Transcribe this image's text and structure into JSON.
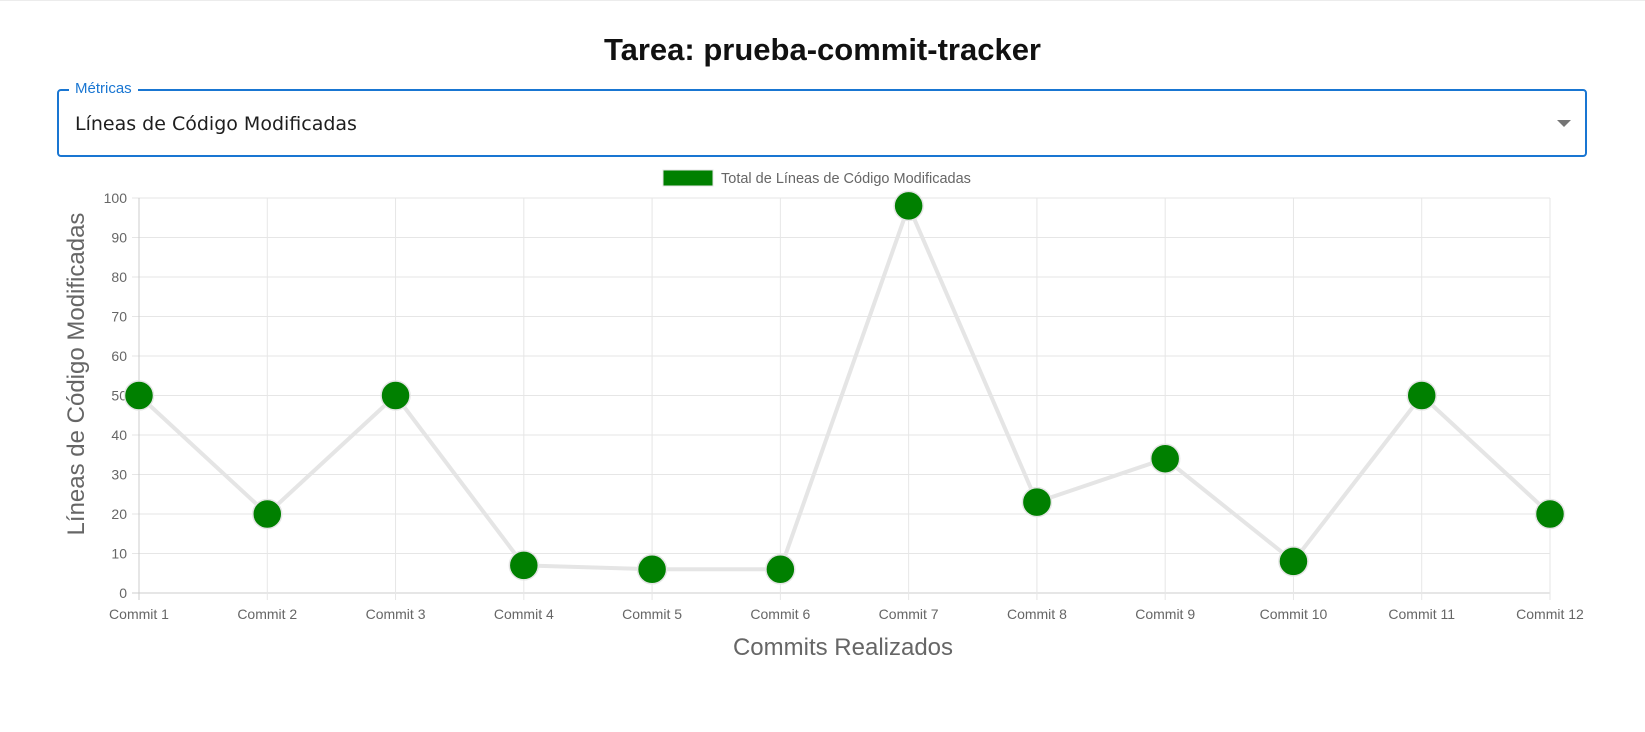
{
  "page": {
    "title": "Tarea: prueba-commit-tracker"
  },
  "metric_select": {
    "label": "Métricas",
    "value": "Líneas de Código Modificadas",
    "icon": "chevron-down-icon"
  },
  "chart_data": {
    "type": "line",
    "categories": [
      "Commit 1",
      "Commit 2",
      "Commit 3",
      "Commit 4",
      "Commit 5",
      "Commit 6",
      "Commit 7",
      "Commit 8",
      "Commit 9",
      "Commit 10",
      "Commit 11",
      "Commit 12"
    ],
    "series": [
      {
        "name": "Total de Líneas de Código Modificadas",
        "values": [
          50,
          20,
          50,
          7,
          6,
          6,
          98,
          23,
          34,
          8,
          50,
          20
        ],
        "point_color": "#008000",
        "line_color": "#e5e5e5"
      }
    ],
    "xlabel": "Commits Realizados",
    "ylabel": "Líneas de Código Modificadas",
    "ylim": [
      0,
      100
    ],
    "yticks": [
      0,
      10,
      20,
      30,
      40,
      50,
      60,
      70,
      80,
      90,
      100
    ],
    "grid": true,
    "legend_position": "top-center"
  }
}
